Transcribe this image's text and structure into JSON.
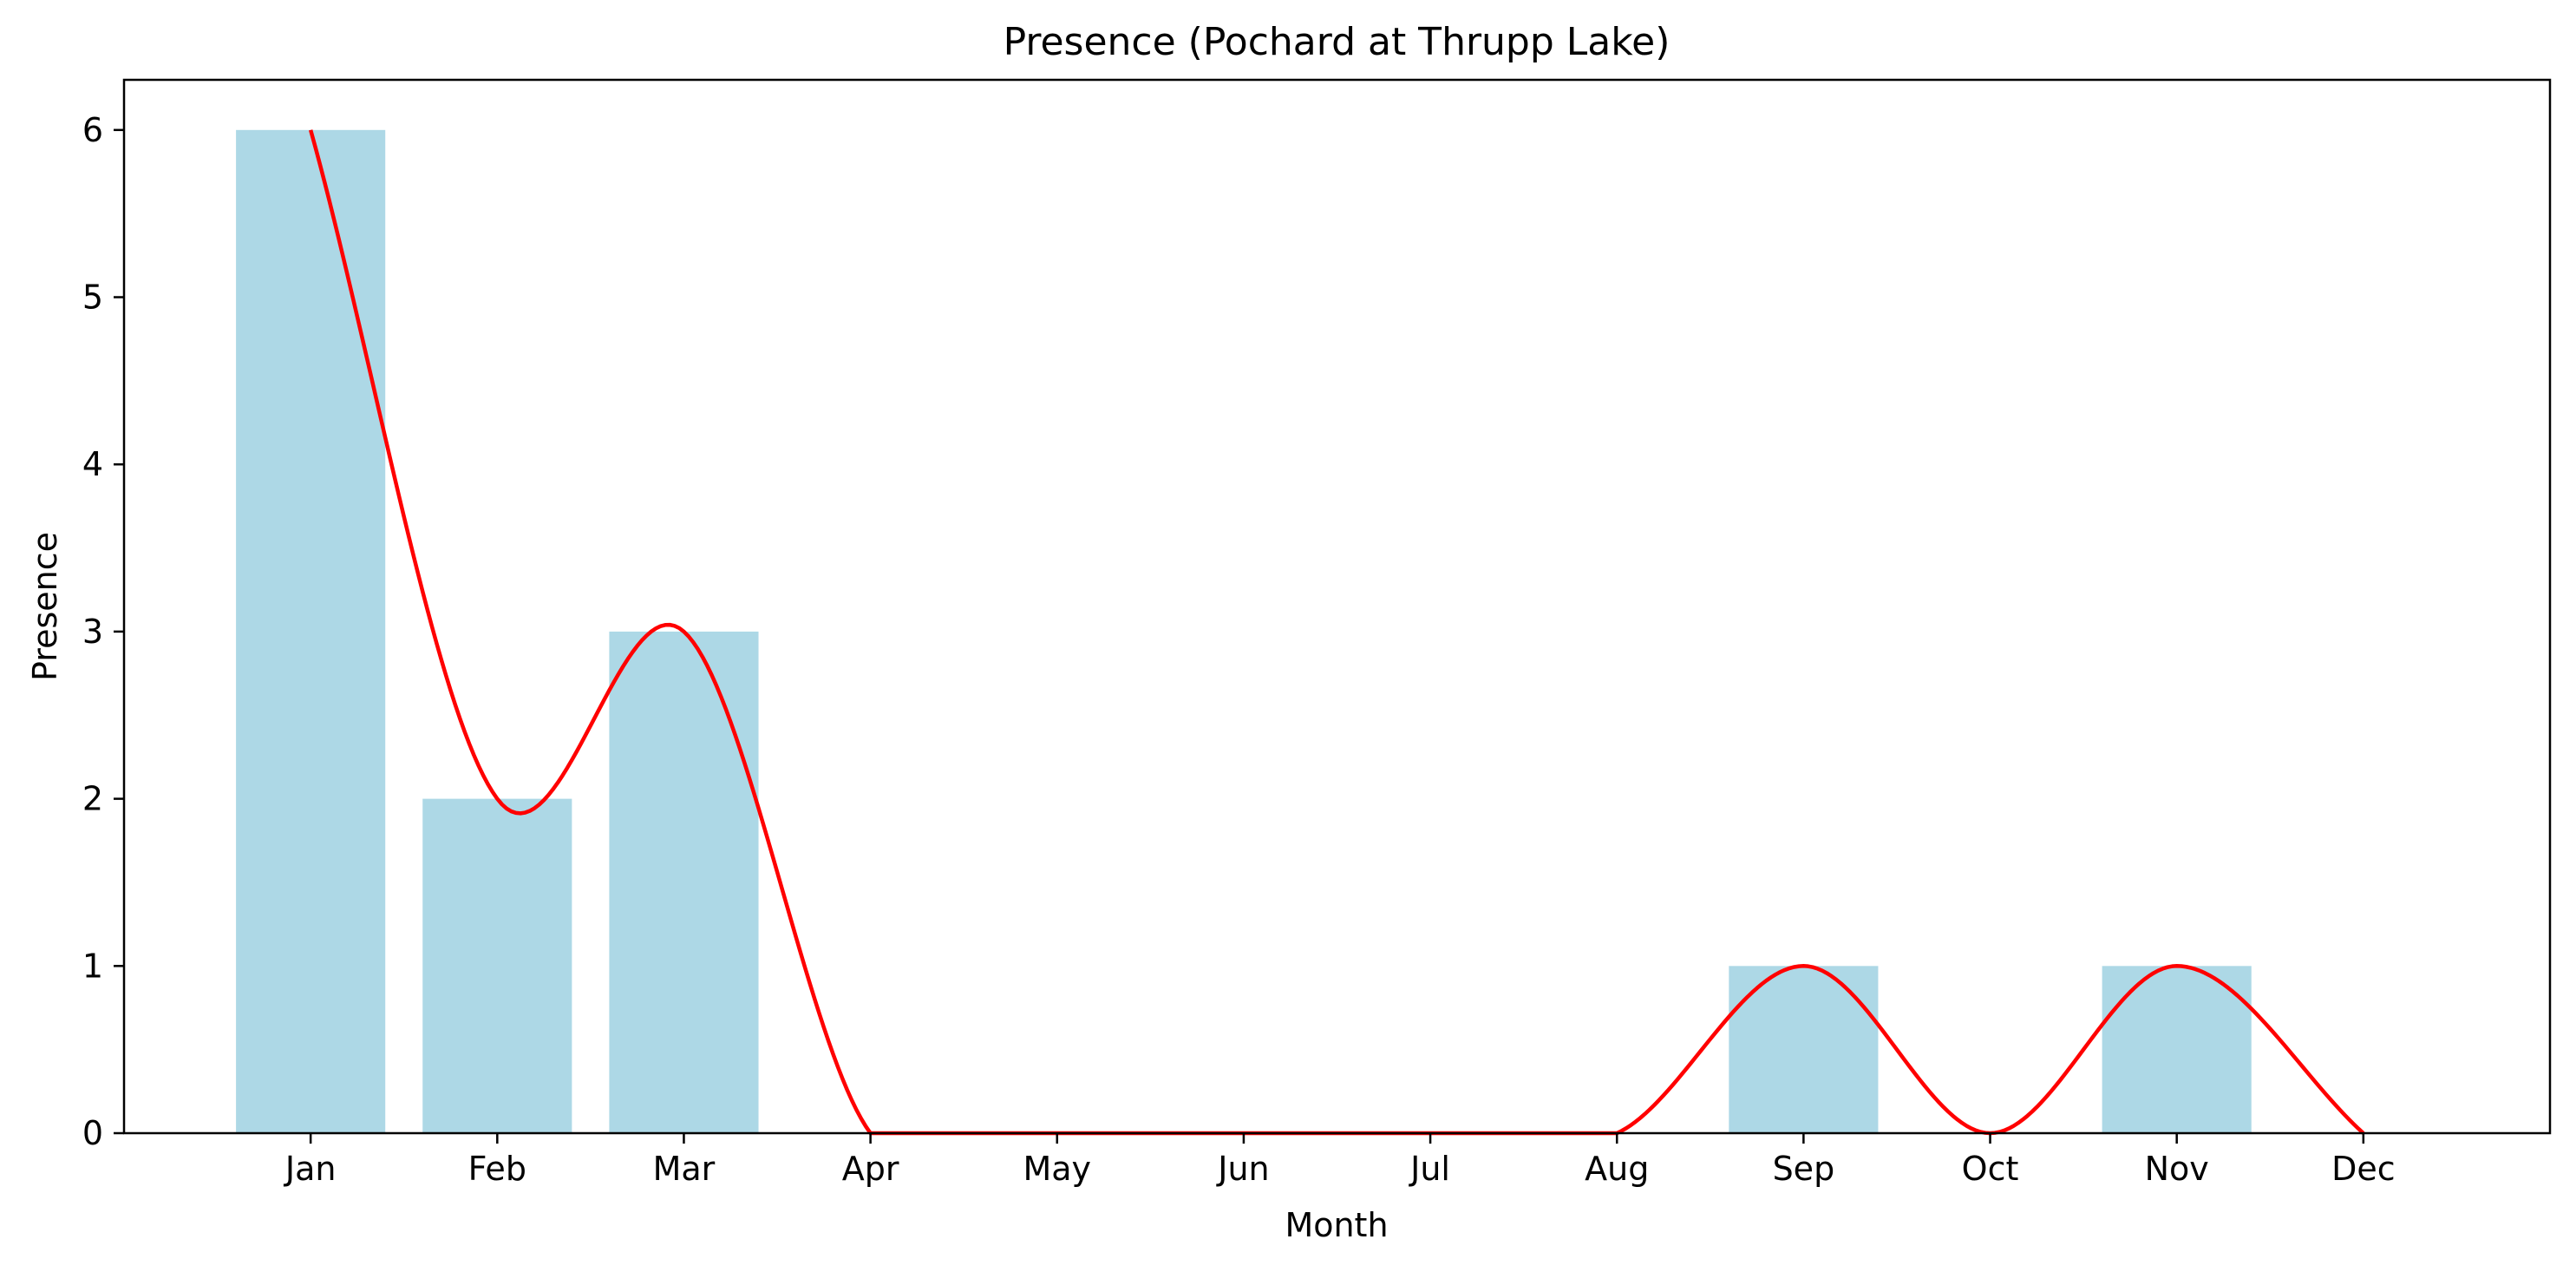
{
  "chart_data": {
    "type": "bar",
    "title": "Presence (Pochard at Thrupp Lake)",
    "xlabel": "Month",
    "ylabel": "Presence",
    "categories": [
      "Jan",
      "Feb",
      "Mar",
      "Apr",
      "May",
      "Jun",
      "Jul",
      "Aug",
      "Sep",
      "Oct",
      "Nov",
      "Dec"
    ],
    "values": [
      6,
      2,
      3,
      0,
      0,
      0,
      0,
      0,
      1,
      0,
      1,
      0
    ],
    "ylim": [
      0,
      6.3
    ],
    "yticks": [
      0,
      1,
      2,
      3,
      4,
      5,
      6
    ],
    "grid": false,
    "overlay": {
      "type": "line",
      "style": "smoothed curve through bar tops"
    },
    "colors": {
      "bar": "#add8e6",
      "line": "#ff0000",
      "axis": "#000000"
    }
  }
}
